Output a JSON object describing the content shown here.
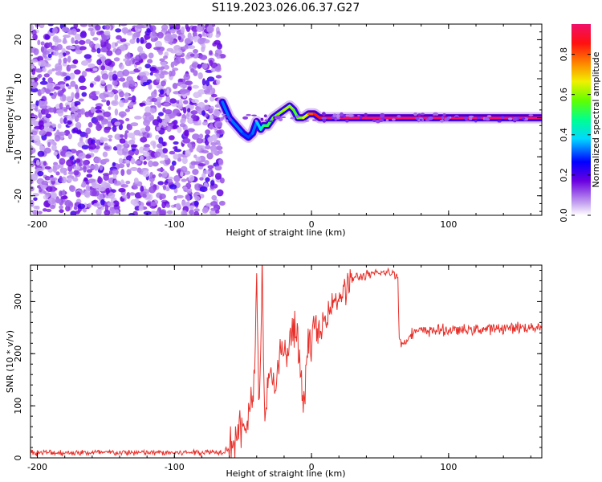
{
  "title": "S119.2023.026.06.37.G27",
  "chart_data": [
    {
      "type": "heatmap",
      "panel": "top",
      "xlabel": "Height of straight line (km)",
      "ylabel": "Frequency (Hz)",
      "xlim": [
        -205,
        168
      ],
      "ylim": [
        -25,
        24
      ],
      "xticks": [
        -200,
        -100,
        0,
        100
      ],
      "yticks": [
        -20,
        -10,
        0,
        10,
        20
      ],
      "noise_region_x": [
        -205,
        -65
      ],
      "signal_trace": {
        "x": [
          -65,
          -60,
          -55,
          -50,
          -46,
          -43,
          -40,
          -37,
          -35,
          -32,
          -28,
          -24,
          -20,
          -16,
          -13,
          -10,
          -6,
          -2,
          2,
          6,
          10,
          20,
          40,
          80,
          120,
          168
        ],
        "y": [
          4,
          0,
          -2,
          -4,
          -5,
          -4,
          -1,
          -3,
          -2,
          -2,
          0,
          1,
          2,
          3,
          2,
          0,
          0,
          1,
          1,
          0,
          0,
          0,
          0,
          0,
          0,
          0
        ],
        "amplitude": [
          0.35,
          0.3,
          0.35,
          0.3,
          0.3,
          0.3,
          0.35,
          0.4,
          0.5,
          0.5,
          0.55,
          0.6,
          0.6,
          0.65,
          0.55,
          0.55,
          0.6,
          0.7,
          0.9,
          0.8,
          0.95,
          0.95,
          0.95,
          0.95,
          0.95,
          0.95
        ]
      },
      "colorbar": {
        "label": "Normalized spectral amplitude",
        "range": [
          0,
          0.95
        ],
        "ticks": [
          "0.0",
          "0.2",
          "0.4",
          "0.6",
          "0.8"
        ],
        "tick_values": [
          0,
          0.2,
          0.4,
          0.6,
          0.8
        ]
      }
    },
    {
      "type": "line",
      "panel": "bottom",
      "xlabel": "Height of straight line (km)",
      "ylabel": "SNR (10 * v/v)",
      "xlim": [
        -205,
        168
      ],
      "ylim": [
        0,
        370
      ],
      "xticks": [
        -200,
        -100,
        0,
        100
      ],
      "yticks": [
        0,
        100,
        200,
        300
      ],
      "series": [
        {
          "name": "SNR",
          "color": "#e8302a",
          "x": [
            -205,
            -150,
            -100,
            -65,
            -60,
            -55,
            -50,
            -45,
            -42,
            -40,
            -38,
            -36,
            -34,
            -30,
            -26,
            -22,
            -18,
            -14,
            -10,
            -6,
            -2,
            2,
            6,
            10,
            15,
            20,
            25,
            30,
            40,
            50,
            60,
            63,
            64,
            65,
            68,
            70,
            72,
            75,
            90,
            110,
            130,
            150,
            168
          ],
          "y": [
            10,
            10,
            10,
            12,
            20,
            40,
            60,
            80,
            140,
            330,
            100,
            350,
            80,
            160,
            140,
            200,
            200,
            240,
            230,
            90,
            230,
            250,
            230,
            270,
            300,
            310,
            325,
            345,
            350,
            355,
            355,
            350,
            225,
            220,
            220,
            228,
            240,
            242,
            245,
            245,
            248,
            250,
            252
          ]
        }
      ]
    }
  ]
}
